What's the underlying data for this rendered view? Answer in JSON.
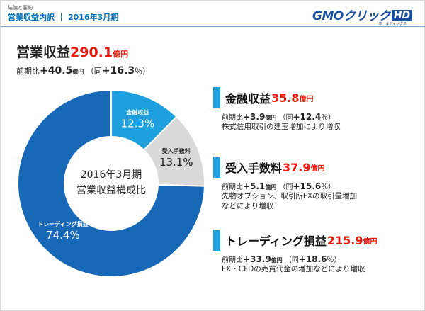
{
  "header": {
    "small_label": "結論と要約",
    "title_left": "営業収益内訳",
    "separator": "｜",
    "title_right": "2016年3月期"
  },
  "logo": {
    "main": "GMOクリック",
    "badge": "HD",
    "sub": "ホールディングス"
  },
  "total": {
    "label": "営業収益",
    "value": "290.1",
    "unit": "億円",
    "yoy_label": "前期比",
    "yoy_value": "+40.5",
    "yoy_unit": "億円",
    "pct_prefix": "（同",
    "pct_value": "+16.3",
    "pct_suffix": "％）"
  },
  "chart_data": {
    "type": "pie",
    "center_label_1": "2016年3月期",
    "center_label_2": "営業収益構成比",
    "slices": [
      {
        "name": "金融収益",
        "value": 12.3,
        "label": "12.3%",
        "color": "#1ea0dd"
      },
      {
        "name": "受入手数料",
        "value": 13.1,
        "label": "13.1%",
        "color": "#d9d9d9"
      },
      {
        "name": "トレーディング損益",
        "value": 74.4,
        "label": "74.4%",
        "color": "#1769b8"
      }
    ]
  },
  "items": [
    {
      "title": "金融収益",
      "value": "35.8",
      "unit": "億円",
      "yoy_label": "前期比",
      "yoy_value": "+3.9",
      "yoy_unit": "億円",
      "pct_prefix": "（同",
      "pct_value": "+12.4",
      "pct_suffix": "％）",
      "desc": [
        "株式信用取引の建玉増加により増収"
      ]
    },
    {
      "title": "受入手数料",
      "value": "37.9",
      "unit": "億円",
      "yoy_label": "前期比",
      "yoy_value": "+5.1",
      "yoy_unit": "億円",
      "pct_prefix": "（同",
      "pct_value": "+15.6",
      "pct_suffix": "％）",
      "desc": [
        "先物オプション、取引所FXの取引量増加",
        "などにより増収"
      ]
    },
    {
      "title": "トレーディング損益",
      "value": "215.9",
      "unit": "億円",
      "yoy_label": "前期比",
      "yoy_value": "+33.9",
      "yoy_unit": "億円",
      "pct_prefix": "（同",
      "pct_value": "+18.6",
      "pct_suffix": "％）",
      "desc": [
        "FX・CFDの売買代金の増加などにより増収"
      ]
    }
  ]
}
